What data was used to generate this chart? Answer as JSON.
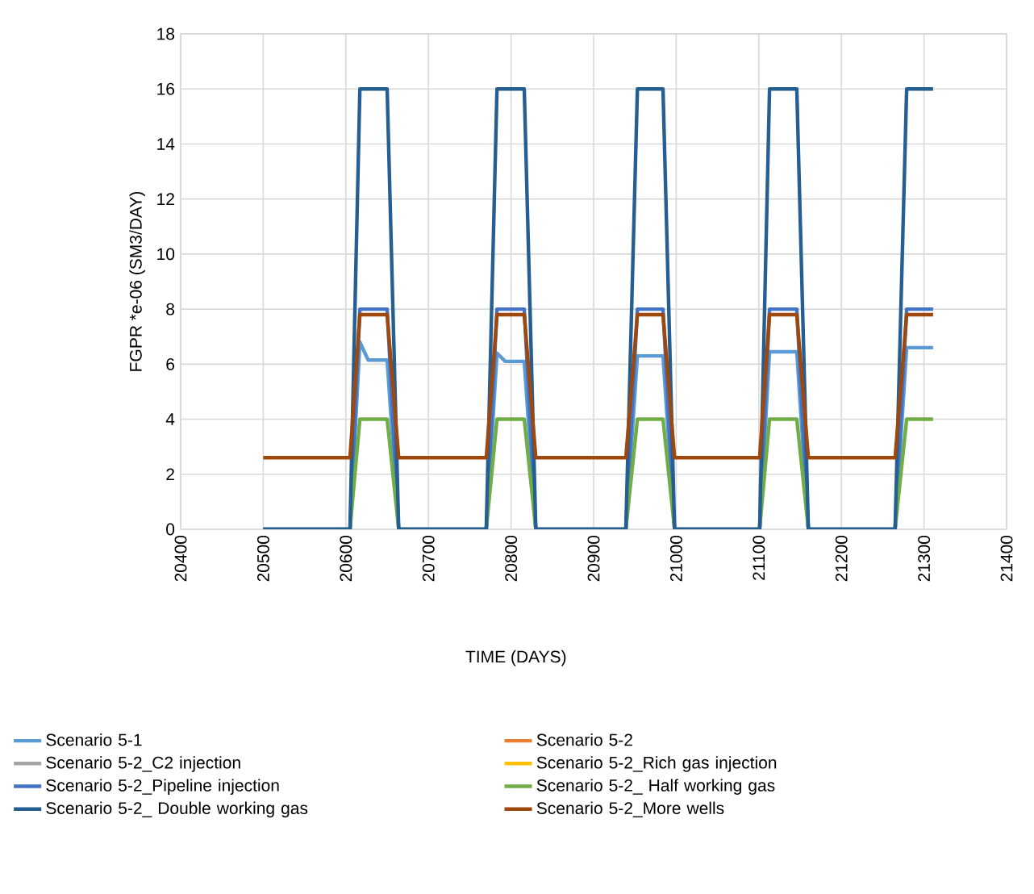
{
  "chart_data": {
    "type": "line",
    "xlabel": "TIME (DAYS)",
    "ylabel": "FGPR *e-06 (SM3/DAY)",
    "x": [
      20500,
      20605,
      20617,
      20627,
      20650,
      20664,
      20770,
      20783,
      20793,
      20816,
      20830,
      20939,
      20953,
      20963,
      20984,
      20998,
      21101,
      21113,
      21123,
      21146,
      21160,
      21265,
      21279,
      21289,
      21311
    ],
    "xlim": [
      20400,
      21400
    ],
    "xticks": [
      20400,
      20500,
      20600,
      20700,
      20800,
      20900,
      21000,
      21100,
      21200,
      21300,
      21400
    ],
    "ylim": [
      0,
      18
    ],
    "yticks": [
      0,
      2,
      4,
      6,
      8,
      10,
      12,
      14,
      16,
      18
    ],
    "grid": true,
    "legend": "bottom",
    "marker": "none",
    "line_style": "solid",
    "series": [
      {
        "name": "Scenario 5-1",
        "color": "#5b9bd5",
        "values": [
          0,
          0,
          6.8,
          6.15,
          6.15,
          0,
          0,
          6.4,
          6.1,
          6.1,
          0,
          0,
          6.3,
          6.3,
          6.3,
          0,
          0,
          6.45,
          6.45,
          6.45,
          0,
          0,
          6.6,
          6.6,
          6.6
        ]
      },
      {
        "name": "Scenario 5-2",
        "color": "#ed7d31",
        "values": [
          null,
          null,
          null,
          null,
          null,
          null,
          null,
          null,
          null,
          null,
          null,
          null,
          null,
          null,
          null,
          null,
          null,
          null,
          null,
          null,
          null,
          null,
          null,
          null,
          null
        ]
      },
      {
        "name": "Scenario 5-2_C2 injection",
        "color": "#a5a5a5",
        "values": [
          null,
          null,
          null,
          null,
          null,
          null,
          null,
          null,
          null,
          null,
          null,
          null,
          null,
          null,
          null,
          null,
          null,
          null,
          null,
          null,
          null,
          null,
          null,
          null,
          null
        ]
      },
      {
        "name": "Scenario 5-2_Rich gas injection",
        "color": "#ffc000",
        "values": [
          null,
          null,
          null,
          null,
          null,
          null,
          null,
          null,
          null,
          null,
          null,
          null,
          null,
          null,
          null,
          null,
          null,
          null,
          null,
          null,
          null,
          null,
          null,
          null,
          null
        ]
      },
      {
        "name": "Scenario 5-2_Pipeline injection",
        "color": "#4472c4",
        "values": [
          0,
          0,
          8,
          8,
          8,
          0,
          0,
          8,
          8,
          8,
          0,
          0,
          8,
          8,
          8,
          0,
          0,
          8,
          8,
          8,
          0,
          0,
          8,
          8,
          8
        ]
      },
      {
        "name": "Scenario 5-2_ Half working gas",
        "color": "#70ad47",
        "values": [
          0,
          0,
          4,
          4,
          4,
          0,
          0,
          4,
          4,
          4,
          0,
          0,
          4,
          4,
          4,
          0,
          0,
          4,
          4,
          4,
          0,
          0,
          4,
          4,
          4
        ]
      },
      {
        "name": "Scenario 5-2_ Double working gas",
        "color": "#255e91",
        "values": [
          0,
          0,
          16,
          16,
          16,
          0,
          0,
          16,
          16,
          16,
          0,
          0,
          16,
          16,
          16,
          0,
          0,
          16,
          16,
          16,
          0,
          0,
          16,
          16,
          16
        ]
      },
      {
        "name": "Scenario 5-2_More wells",
        "color": "#9e480e",
        "values": [
          2.6,
          2.6,
          7.8,
          7.8,
          7.8,
          2.6,
          2.6,
          7.8,
          7.8,
          7.8,
          2.6,
          2.6,
          7.8,
          7.8,
          7.8,
          2.6,
          2.6,
          7.8,
          7.8,
          7.8,
          2.6,
          2.6,
          7.8,
          7.8,
          7.8
        ]
      }
    ]
  }
}
